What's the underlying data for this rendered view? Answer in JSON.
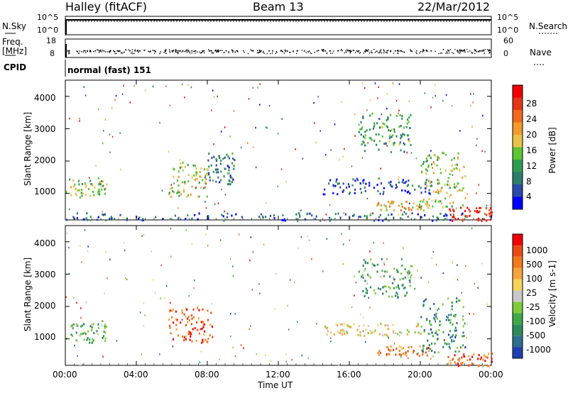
{
  "header": {
    "station": "Halley (fitACF)",
    "beam": "Beam 13",
    "date": "22/Mar/2012"
  },
  "panels": {
    "noise": {
      "left_label": "N.Sky",
      "left_ticks": [
        "10^5",
        "10^0"
      ],
      "right_label": "N.Search",
      "right_ticks": [
        "10^5",
        "10^0"
      ]
    },
    "freq": {
      "left_label_1": "Freq.",
      "left_label_2": "[MHz]",
      "left_ticks": [
        "18",
        "8"
      ],
      "right_label": "Nave",
      "right_ticks": [
        "60",
        "0"
      ]
    },
    "cpid": {
      "label": "CPID",
      "value": "normal (fast) 151"
    }
  },
  "chart_data": [
    {
      "type": "heatmap",
      "name": "power",
      "ylabel": "Slant Range [km]",
      "xlabel": "",
      "x_ticks": [
        "00:00",
        "04:00",
        "08:00",
        "12:00",
        "16:00",
        "20:00",
        "00:00"
      ],
      "y_ticks": [
        "1000",
        "2000",
        "3000",
        "4000"
      ],
      "ylim": [
        180,
        4500
      ],
      "xlim_hours": [
        0,
        24
      ],
      "colorbar": {
        "label": "Power [dB]",
        "tick_labels": [
          "4",
          "8",
          "12",
          "16",
          "20",
          "24",
          "28"
        ],
        "colors": [
          "#0000ff",
          "#2a4aa8",
          "#2e7d6a",
          "#2f9b4f",
          "#5cc531",
          "#e8c24a",
          "#f29a2e",
          "#ef6a1e",
          "#e23616",
          "#f10000"
        ]
      },
      "regions": [
        {
          "x": [
            0.0,
            2.3
          ],
          "y": [
            900,
            1500
          ],
          "level": 0.45
        },
        {
          "x": [
            5.8,
            8.0
          ],
          "y": [
            900,
            2000
          ],
          "level": 0.5
        },
        {
          "x": [
            8.0,
            9.5
          ],
          "y": [
            1300,
            2300
          ],
          "level": 0.25
        },
        {
          "x": [
            14.5,
            21.0
          ],
          "y": [
            1000,
            1500
          ],
          "level": 0.15
        },
        {
          "x": [
            16.5,
            19.5
          ],
          "y": [
            2300,
            3500
          ],
          "level": 0.35
        },
        {
          "x": [
            17.5,
            20.5
          ],
          "y": [
            500,
            800
          ],
          "level": 0.6
        },
        {
          "x": [
            20.0,
            22.5
          ],
          "y": [
            600,
            2300
          ],
          "level": 0.5
        },
        {
          "x": [
            21.5,
            24.0
          ],
          "y": [
            180,
            600
          ],
          "level": 0.95
        },
        {
          "x": [
            0.0,
            24.0
          ],
          "y": [
            180,
            420
          ],
          "level": 0.2
        }
      ]
    },
    {
      "type": "heatmap",
      "name": "velocity",
      "ylabel": "Slant Range [km]",
      "xlabel": "Time UT",
      "x_ticks": [
        "00:00",
        "04:00",
        "08:00",
        "12:00",
        "16:00",
        "20:00",
        "00:00"
      ],
      "y_ticks": [
        "1000",
        "2000",
        "3000",
        "4000"
      ],
      "ylim": [
        180,
        4500
      ],
      "xlim_hours": [
        0,
        24
      ],
      "colorbar": {
        "label": "Velocity [m s-1]",
        "tick_labels": [
          "1000",
          "500",
          "100",
          "25",
          "-25",
          "-100",
          "-500",
          "-1000"
        ],
        "colors": [
          "#1f3fb0",
          "#2e6e8e",
          "#2e8a5a",
          "#3fa84a",
          "#7fcc3a",
          "#c8c8c8",
          "#f5d35a",
          "#f3a43a",
          "#ef7a1e",
          "#e84b14",
          "#f00000"
        ]
      },
      "regions": [
        {
          "x": [
            0.0,
            2.3
          ],
          "y": [
            900,
            1500
          ],
          "level": 0.35
        },
        {
          "x": [
            5.8,
            8.3
          ],
          "y": [
            900,
            2000
          ],
          "level": 0.85
        },
        {
          "x": [
            14.5,
            20.5
          ],
          "y": [
            1100,
            1500
          ],
          "level": 0.55
        },
        {
          "x": [
            16.5,
            19.5
          ],
          "y": [
            2300,
            3500
          ],
          "level": 0.3
        },
        {
          "x": [
            17.5,
            20.5
          ],
          "y": [
            500,
            800
          ],
          "level": 0.75
        },
        {
          "x": [
            20.0,
            22.5
          ],
          "y": [
            600,
            2300
          ],
          "level": 0.25
        },
        {
          "x": [
            21.5,
            24.0
          ],
          "y": [
            180,
            600
          ],
          "level": 0.8
        }
      ]
    }
  ]
}
